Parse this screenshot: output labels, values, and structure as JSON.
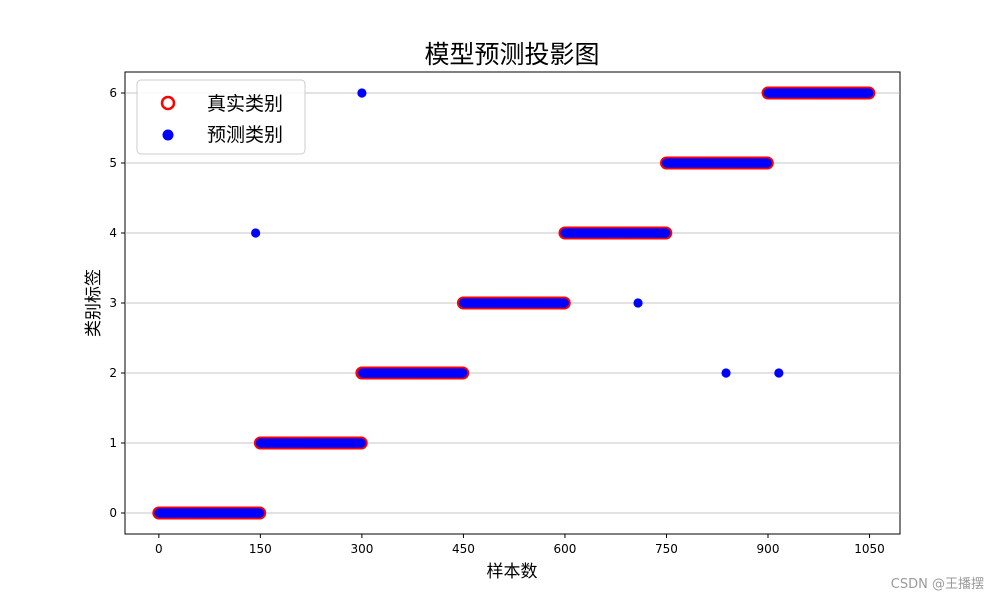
{
  "chart_data": {
    "type": "scatter",
    "title": "模型预测投影图",
    "xlabel": "样本数",
    "ylabel": "类别标签",
    "xlim": [
      -50,
      1095
    ],
    "ylim": [
      -0.3,
      6.3
    ],
    "xticks": [
      0,
      150,
      300,
      450,
      600,
      750,
      900,
      1050
    ],
    "yticks": [
      0,
      1,
      2,
      3,
      4,
      5,
      6
    ],
    "grid": "y-axis horizontal lines",
    "legend_position": "top-left",
    "series": [
      {
        "name": "真实类别",
        "marker": "hollow-circle",
        "color": "#ff0000",
        "segments": [
          {
            "label": 0,
            "x_start": 0,
            "x_end": 149
          },
          {
            "label": 1,
            "x_start": 150,
            "x_end": 299
          },
          {
            "label": 2,
            "x_start": 300,
            "x_end": 449
          },
          {
            "label": 3,
            "x_start": 450,
            "x_end": 599
          },
          {
            "label": 4,
            "x_start": 600,
            "x_end": 749
          },
          {
            "label": 5,
            "x_start": 750,
            "x_end": 899
          },
          {
            "label": 6,
            "x_start": 900,
            "x_end": 1049
          }
        ]
      },
      {
        "name": "预测类别",
        "marker": "filled-circle",
        "color": "#0000ff",
        "follows_true_labels": true,
        "outliers": [
          {
            "x": 143,
            "y": 4
          },
          {
            "x": 300,
            "y": 6
          },
          {
            "x": 708,
            "y": 3
          },
          {
            "x": 838,
            "y": 2
          },
          {
            "x": 916,
            "y": 2
          }
        ]
      }
    ]
  },
  "watermark": "CSDN @王播摆"
}
